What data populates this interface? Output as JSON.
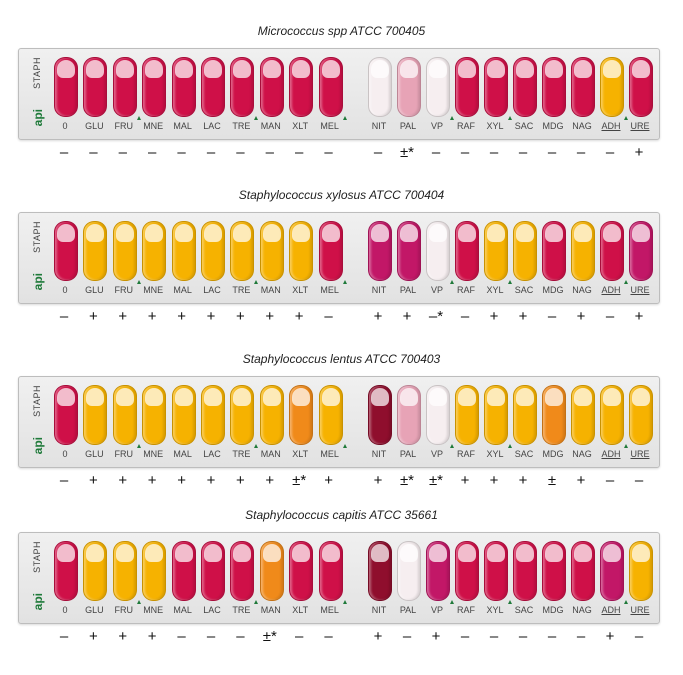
{
  "colors": {
    "red": "#cf1048",
    "yellow": "#f6b200",
    "orange": "#f08a1a",
    "pink": "#e7a3b6",
    "clear": "#f6eef0",
    "dark": "#8f0e2d",
    "magenta": "#c21767"
  },
  "brand": {
    "name": "STAPH",
    "logo": "api"
  },
  "panels": [
    {
      "title": "Micrococcus spp ATCC 700405",
      "tests": [
        {
          "name": "0",
          "color": "red",
          "result": "–"
        },
        {
          "name": "GLU",
          "color": "red",
          "result": "–"
        },
        {
          "name": "FRU",
          "color": "red",
          "result": "–"
        },
        {
          "name": "MNE",
          "color": "red",
          "result": "–"
        },
        {
          "name": "MAL",
          "color": "red",
          "result": "–"
        },
        {
          "name": "LAC",
          "color": "red",
          "result": "–"
        },
        {
          "name": "TRE",
          "color": "red",
          "result": "–"
        },
        {
          "name": "MAN",
          "color": "red",
          "result": "–"
        },
        {
          "name": "XLT",
          "color": "red",
          "result": "–"
        },
        {
          "name": "MEL",
          "color": "red",
          "result": "–"
        },
        {
          "name": "NIT",
          "color": "clear",
          "result": "–"
        },
        {
          "name": "PAL",
          "color": "pink",
          "result": "±*"
        },
        {
          "name": "VP",
          "color": "clear",
          "result": "–"
        },
        {
          "name": "RAF",
          "color": "red",
          "result": "–"
        },
        {
          "name": "XYL",
          "color": "red",
          "result": "–"
        },
        {
          "name": "SAC",
          "color": "red",
          "result": "–"
        },
        {
          "name": "MDG",
          "color": "red",
          "result": "–"
        },
        {
          "name": "NAG",
          "color": "red",
          "result": "–"
        },
        {
          "name": "ADH",
          "color": "yellow",
          "result": "–"
        },
        {
          "name": "URE",
          "color": "red",
          "result": "+"
        }
      ]
    },
    {
      "title": "Staphylococcus xylosus ATCC 700404",
      "tests": [
        {
          "name": "0",
          "color": "red",
          "result": "–"
        },
        {
          "name": "GLU",
          "color": "yellow",
          "result": "+"
        },
        {
          "name": "FRU",
          "color": "yellow",
          "result": "+"
        },
        {
          "name": "MNE",
          "color": "yellow",
          "result": "+"
        },
        {
          "name": "MAL",
          "color": "yellow",
          "result": "+"
        },
        {
          "name": "LAC",
          "color": "yellow",
          "result": "+"
        },
        {
          "name": "TRE",
          "color": "yellow",
          "result": "+"
        },
        {
          "name": "MAN",
          "color": "yellow",
          "result": "+"
        },
        {
          "name": "XLT",
          "color": "yellow",
          "result": "+"
        },
        {
          "name": "MEL",
          "color": "red",
          "result": "–"
        },
        {
          "name": "NIT",
          "color": "magenta",
          "result": "+"
        },
        {
          "name": "PAL",
          "color": "magenta",
          "result": "+"
        },
        {
          "name": "VP",
          "color": "clear",
          "result": "–*"
        },
        {
          "name": "RAF",
          "color": "red",
          "result": "–"
        },
        {
          "name": "XYL",
          "color": "yellow",
          "result": "+"
        },
        {
          "name": "SAC",
          "color": "yellow",
          "result": "+"
        },
        {
          "name": "MDG",
          "color": "red",
          "result": "–"
        },
        {
          "name": "NAG",
          "color": "yellow",
          "result": "+"
        },
        {
          "name": "ADH",
          "color": "red",
          "result": "–"
        },
        {
          "name": "URE",
          "color": "magenta",
          "result": "+"
        }
      ]
    },
    {
      "title": "Staphylococcus lentus ATCC 700403",
      "tests": [
        {
          "name": "0",
          "color": "red",
          "result": "–"
        },
        {
          "name": "GLU",
          "color": "yellow",
          "result": "+"
        },
        {
          "name": "FRU",
          "color": "yellow",
          "result": "+"
        },
        {
          "name": "MNE",
          "color": "yellow",
          "result": "+"
        },
        {
          "name": "MAL",
          "color": "yellow",
          "result": "+"
        },
        {
          "name": "LAC",
          "color": "yellow",
          "result": "+"
        },
        {
          "name": "TRE",
          "color": "yellow",
          "result": "+"
        },
        {
          "name": "MAN",
          "color": "yellow",
          "result": "+"
        },
        {
          "name": "XLT",
          "color": "orange",
          "result": "±*"
        },
        {
          "name": "MEL",
          "color": "yellow",
          "result": "+"
        },
        {
          "name": "NIT",
          "color": "dark",
          "result": "+"
        },
        {
          "name": "PAL",
          "color": "pink",
          "result": "±*"
        },
        {
          "name": "VP",
          "color": "clear",
          "result": "±*"
        },
        {
          "name": "RAF",
          "color": "yellow",
          "result": "+"
        },
        {
          "name": "XYL",
          "color": "yellow",
          "result": "+"
        },
        {
          "name": "SAC",
          "color": "yellow",
          "result": "+"
        },
        {
          "name": "MDG",
          "color": "orange",
          "result": "±"
        },
        {
          "name": "NAG",
          "color": "yellow",
          "result": "+"
        },
        {
          "name": "ADH",
          "color": "yellow",
          "result": "–"
        },
        {
          "name": "URE",
          "color": "yellow",
          "result": "–"
        }
      ]
    },
    {
      "title": "Staphylococcus capitis ATCC 35661",
      "tests": [
        {
          "name": "0",
          "color": "red",
          "result": "–"
        },
        {
          "name": "GLU",
          "color": "yellow",
          "result": "+"
        },
        {
          "name": "FRU",
          "color": "yellow",
          "result": "+"
        },
        {
          "name": "MNE",
          "color": "yellow",
          "result": "+"
        },
        {
          "name": "MAL",
          "color": "red",
          "result": "–"
        },
        {
          "name": "LAC",
          "color": "red",
          "result": "–"
        },
        {
          "name": "TRE",
          "color": "red",
          "result": "–"
        },
        {
          "name": "MAN",
          "color": "orange",
          "result": "±*"
        },
        {
          "name": "XLT",
          "color": "red",
          "result": "–"
        },
        {
          "name": "MEL",
          "color": "red",
          "result": "–"
        },
        {
          "name": "NIT",
          "color": "dark",
          "result": "+"
        },
        {
          "name": "PAL",
          "color": "clear",
          "result": "–"
        },
        {
          "name": "VP",
          "color": "magenta",
          "result": "+"
        },
        {
          "name": "RAF",
          "color": "red",
          "result": "–"
        },
        {
          "name": "XYL",
          "color": "red",
          "result": "–"
        },
        {
          "name": "SAC",
          "color": "red",
          "result": "–"
        },
        {
          "name": "MDG",
          "color": "red",
          "result": "–"
        },
        {
          "name": "NAG",
          "color": "red",
          "result": "–"
        },
        {
          "name": "ADH",
          "color": "magenta",
          "result": "+"
        },
        {
          "name": "URE",
          "color": "yellow",
          "result": "–"
        }
      ]
    }
  ]
}
